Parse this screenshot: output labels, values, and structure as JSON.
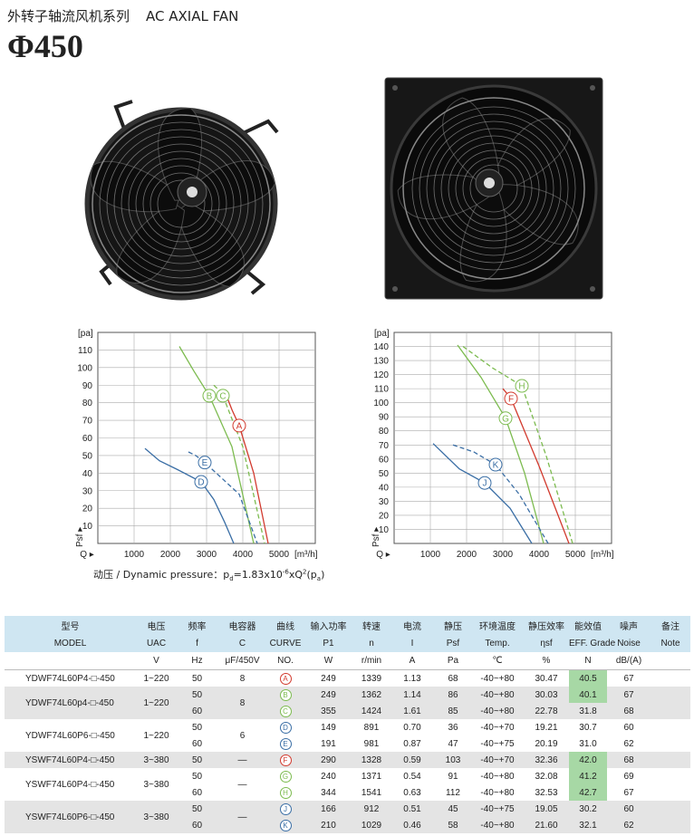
{
  "header": {
    "title_cn": "外转子轴流风机系列",
    "title_en": "AC AXIAL FAN",
    "size": "Φ450"
  },
  "chart_data": [
    {
      "type": "line",
      "ylabel": "[pa]",
      "xunit": "[m³/h]",
      "xlabel": "Q ▸",
      "ylabel_bottom": "Psf ▸",
      "xlim": [
        0,
        6000
      ],
      "ylim": [
        0,
        120
      ],
      "xticks": [
        1000,
        2000,
        3000,
        4000,
        5000
      ],
      "yticks": [
        10,
        20,
        30,
        40,
        50,
        60,
        70,
        80,
        90,
        100,
        110
      ],
      "grid": true,
      "series": [
        {
          "name": "A",
          "color": "#d23a2e",
          "dash": false,
          "x": [
            3550,
            3700,
            3900,
            4300,
            4700
          ],
          "values": [
            84,
            76,
            67,
            40,
            0
          ]
        },
        {
          "name": "B",
          "color": "#7cbb4f",
          "dash": false,
          "x": [
            2250,
            2650,
            3075,
            3700,
            4300
          ],
          "values": [
            112,
            98,
            84,
            55,
            0
          ]
        },
        {
          "name": "C",
          "color": "#7cbb4f",
          "dash": true,
          "x": [
            3200,
            3300,
            3450,
            4000,
            4600
          ],
          "values": [
            90,
            88,
            84,
            55,
            0
          ]
        },
        {
          "name": "D",
          "color": "#3a6ea5",
          "dash": false,
          "x": [
            1300,
            1700,
            2200,
            2850,
            3200,
            3500,
            3750
          ],
          "values": [
            54,
            47,
            42,
            35,
            25,
            12,
            0
          ]
        },
        {
          "name": "E",
          "color": "#3a6ea5",
          "dash": true,
          "x": [
            2500,
            2700,
            2950,
            3900,
            4400
          ],
          "values": [
            52,
            50,
            46,
            28,
            0
          ]
        }
      ]
    },
    {
      "type": "line",
      "ylabel": "[pa]",
      "xunit": "[m³/h]",
      "xlabel": "Q ▸",
      "ylabel_bottom": "Psf ▸",
      "xlim": [
        0,
        6000
      ],
      "ylim": [
        0,
        150
      ],
      "xticks": [
        1000,
        2000,
        3000,
        4000,
        5000
      ],
      "yticks": [
        10,
        20,
        30,
        40,
        50,
        60,
        70,
        80,
        90,
        100,
        110,
        120,
        130,
        140
      ],
      "grid": true,
      "series": [
        {
          "name": "F",
          "color": "#d23a2e",
          "dash": false,
          "x": [
            3000,
            3100,
            3225,
            4000,
            4825
          ],
          "values": [
            110,
            107,
            103,
            55,
            0
          ]
        },
        {
          "name": "G",
          "color": "#7cbb4f",
          "dash": false,
          "x": [
            1750,
            2400,
            3075,
            3600,
            4125
          ],
          "values": [
            141,
            118,
            89,
            50,
            0
          ]
        },
        {
          "name": "H",
          "color": "#7cbb4f",
          "dash": true,
          "x": [
            1900,
            2700,
            3525,
            4200,
            4925
          ],
          "values": [
            140,
            125,
            112,
            62,
            0
          ]
        },
        {
          "name": "J",
          "color": "#3a6ea5",
          "dash": false,
          "x": [
            1075,
            1800,
            2500,
            3200,
            3800
          ],
          "values": [
            71,
            53,
            43,
            25,
            0
          ]
        },
        {
          "name": "K",
          "color": "#3a6ea5",
          "dash": true,
          "x": [
            1625,
            2200,
            2800,
            3450,
            4250
          ],
          "values": [
            70,
            65,
            56,
            35,
            0
          ]
        }
      ]
    }
  ],
  "formula": [
    "动压 / Dynamic pressure：p",
    "d",
    "=1.83x10",
    "-6",
    "xQ",
    "2",
    "(p",
    "a",
    ")"
  ],
  "table": {
    "header_cn": [
      "型号",
      "电压",
      "频率",
      "电容器",
      "曲线",
      "输入功率",
      "转速",
      "电流",
      "静压",
      "环境温度",
      "静压效率",
      "能效值",
      "噪声",
      "备注"
    ],
    "header_en": [
      "MODEL",
      "UAC",
      "f",
      "C",
      "CURVE",
      "P1",
      "n",
      "I",
      "Psf",
      "Temp.",
      "ηsf",
      "EFF. Grade",
      "Noise",
      "Note"
    ],
    "units": [
      "V",
      "Hz",
      "μF/450V",
      "NO.",
      "W",
      "r/min",
      "A",
      "Pa",
      "℃",
      "%",
      "N",
      "dB/(A)"
    ],
    "groups": [
      {
        "model": "YDWF74L60P4-□-450",
        "voltage": "1~220",
        "capacitor": "8",
        "rows": [
          {
            "f": "50",
            "curve": "A",
            "color": "#d23a2e",
            "p1": "249",
            "n": "1339",
            "i": "1.13",
            "psf": "68",
            "temp": "-40~+80",
            "eff": "30.47",
            "grade": "40.5",
            "highlight": true,
            "noise": "67"
          }
        ]
      },
      {
        "model": "YDWF74L60p4-□-450",
        "voltage": "1~220",
        "capacitor": "8",
        "rows": [
          {
            "f": "50",
            "curve": "B",
            "color": "#7cbb4f",
            "p1": "249",
            "n": "1362",
            "i": "1.14",
            "psf": "86",
            "temp": "-40~+80",
            "eff": "30.03",
            "grade": "40.1",
            "highlight": true,
            "noise": "67"
          },
          {
            "f": "60",
            "curve": "C",
            "color": "#7cbb4f",
            "p1": "355",
            "n": "1424",
            "i": "1.61",
            "psf": "85",
            "temp": "-40~+80",
            "eff": "22.78",
            "grade": "31.8",
            "highlight": false,
            "noise": "68"
          }
        ]
      },
      {
        "model": "YDWF74L60P6-□-450",
        "voltage": "1~220",
        "capacitor": "6",
        "rows": [
          {
            "f": "50",
            "curve": "D",
            "color": "#3a6ea5",
            "p1": "149",
            "n": "891",
            "i": "0.70",
            "psf": "36",
            "temp": "-40~+70",
            "eff": "19.21",
            "grade": "30.7",
            "highlight": false,
            "noise": "60"
          },
          {
            "f": "60",
            "curve": "E",
            "color": "#3a6ea5",
            "p1": "191",
            "n": "981",
            "i": "0.87",
            "psf": "47",
            "temp": "-40~+75",
            "eff": "20.19",
            "grade": "31.0",
            "highlight": false,
            "noise": "62"
          }
        ]
      },
      {
        "model": "YSWF74L60P4-□-450",
        "voltage": "3~380",
        "capacitor": "—",
        "rows": [
          {
            "f": "50",
            "curve": "F",
            "color": "#d23a2e",
            "p1": "290",
            "n": "1328",
            "i": "0.59",
            "psf": "103",
            "temp": "-40~+70",
            "eff": "32.36",
            "grade": "42.0",
            "highlight": true,
            "noise": "68"
          }
        ]
      },
      {
        "model": "YSWF74L60P4-□-450",
        "voltage": "3~380",
        "capacitor": "—",
        "rows": [
          {
            "f": "50",
            "curve": "G",
            "color": "#7cbb4f",
            "p1": "240",
            "n": "1371",
            "i": "0.54",
            "psf": "91",
            "temp": "-40~+80",
            "eff": "32.08",
            "grade": "41.2",
            "highlight": true,
            "noise": "69"
          },
          {
            "f": "60",
            "curve": "H",
            "color": "#7cbb4f",
            "p1": "344",
            "n": "1541",
            "i": "0.63",
            "psf": "112",
            "temp": "-40~+80",
            "eff": "32.53",
            "grade": "42.7",
            "highlight": true,
            "noise": "67"
          }
        ]
      },
      {
        "model": "YSWF74L60P6-□-450",
        "voltage": "3~380",
        "capacitor": "—",
        "rows": [
          {
            "f": "50",
            "curve": "J",
            "color": "#3a6ea5",
            "p1": "166",
            "n": "912",
            "i": "0.51",
            "psf": "45",
            "temp": "-40~+75",
            "eff": "19.05",
            "grade": "30.2",
            "highlight": false,
            "noise": "60"
          },
          {
            "f": "60",
            "curve": "K",
            "color": "#3a6ea5",
            "p1": "210",
            "n": "1029",
            "i": "0.46",
            "psf": "58",
            "temp": "-40~+80",
            "eff": "21.60",
            "grade": "32.1",
            "highlight": false,
            "noise": "62"
          }
        ]
      }
    ]
  }
}
